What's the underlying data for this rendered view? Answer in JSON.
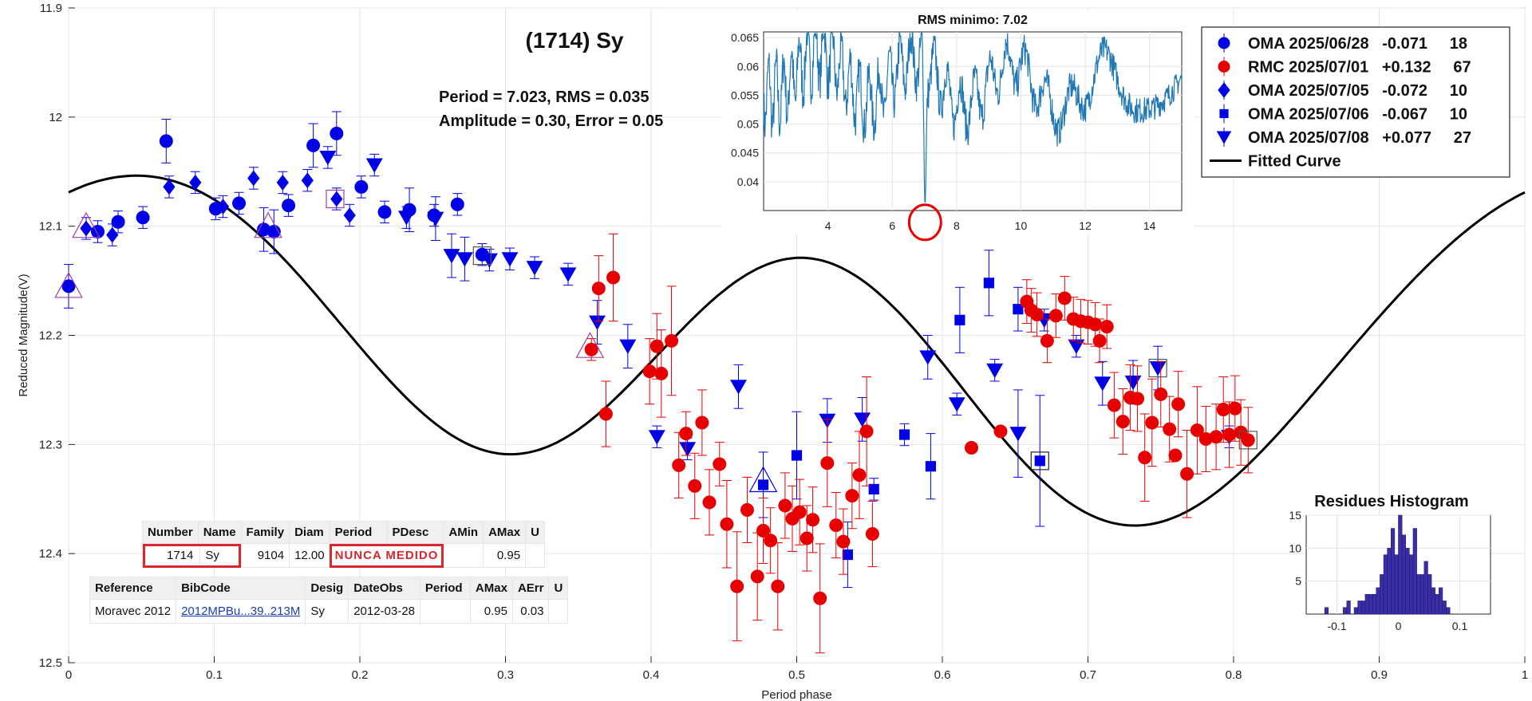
{
  "chart_data": [
    {
      "type": "scatter",
      "title": "(1714) Sy",
      "annotation_lines": [
        "Period =  7.023, RMS = 0.035",
        "Amplitude = 0.30, Error =  0.05"
      ],
      "xlabel": "Period phase",
      "ylabel": "Reduced Magnitude(V)",
      "xlim": [
        0,
        1
      ],
      "ylim": [
        11.9,
        12.5
      ],
      "y_reversed": true,
      "x_ticks": [
        "0",
        "0.1",
        "0.2",
        "0.3",
        "0.4",
        "0.5",
        "0.6",
        "0.7",
        "0.8",
        "0.9",
        "1"
      ],
      "y_ticks": [
        "11.9",
        "12",
        "12.1",
        "12.2",
        "12.3",
        "12.4",
        "12.5"
      ],
      "grid": true,
      "legend_position": "top-right",
      "legend": [
        {
          "label": "OMA 2025/06/28   -0.071     18",
          "marker": "circle",
          "color": "#0000e6"
        },
        {
          "label": "RMC 2025/07/01   +0.132     67",
          "marker": "circle",
          "color": "#e60000"
        },
        {
          "label": "OMA 2025/07/05   -0.072     10",
          "marker": "diamond",
          "color": "#0000e6"
        },
        {
          "label": "OMA 2025/07/06   -0.067     10",
          "marker": "square",
          "color": "#0000e6"
        },
        {
          "label": "OMA 2025/07/08   +0.077     27",
          "marker": "triangle-down",
          "color": "#0000e6"
        },
        {
          "label": "Fitted Curve",
          "marker": "line",
          "color": "#000000"
        }
      ],
      "series": [
        {
          "name": "OMA 2025/06/28",
          "marker": "circle",
          "color": "#0000e6",
          "points": [
            [
              0.0,
              12.155
            ],
            [
              0.02,
              12.105
            ],
            [
              0.034,
              12.096
            ],
            [
              0.051,
              12.092
            ],
            [
              0.067,
              12.022
            ],
            [
              0.101,
              12.084
            ],
            [
              0.117,
              12.079
            ],
            [
              0.134,
              12.103
            ],
            [
              0.141,
              12.105
            ],
            [
              0.151,
              12.081
            ],
            [
              0.168,
              12.026
            ],
            [
              0.184,
              12.015
            ],
            [
              0.201,
              12.064
            ],
            [
              0.217,
              12.087
            ],
            [
              0.234,
              12.085
            ],
            [
              0.251,
              12.09
            ],
            [
              0.267,
              12.08
            ],
            [
              0.284,
              12.126
            ]
          ],
          "err": [
            0.02,
            0.01,
            0.01,
            0.01,
            0.02,
            0.01,
            0.01,
            0.02,
            0.02,
            0.01,
            0.02,
            0.02,
            0.01,
            0.01,
            0.02,
            0.01,
            0.01,
            0.01
          ]
        },
        {
          "name": "OMA 2025/07/05",
          "marker": "diamond",
          "color": "#0000e6",
          "points": [
            [
              0.012,
              12.102
            ],
            [
              0.03,
              12.108
            ],
            [
              0.069,
              12.064
            ],
            [
              0.087,
              12.06
            ],
            [
              0.106,
              12.082
            ],
            [
              0.127,
              12.056
            ],
            [
              0.147,
              12.06
            ],
            [
              0.164,
              12.058
            ],
            [
              0.184,
              12.075
            ],
            [
              0.193,
              12.09
            ]
          ],
          "err": [
            0.01,
            0.01,
            0.01,
            0.01,
            0.01,
            0.01,
            0.01,
            0.01,
            0.01,
            0.01
          ]
        },
        {
          "name": "OMA 2025/07/06",
          "marker": "square",
          "color": "#0000e6",
          "points": [
            [
              0.477,
              12.337
            ],
            [
              0.5,
              12.31
            ],
            [
              0.535,
              12.401
            ],
            [
              0.553,
              12.341
            ],
            [
              0.574,
              12.291
            ],
            [
              0.592,
              12.32
            ],
            [
              0.612,
              12.186
            ],
            [
              0.632,
              12.152
            ],
            [
              0.652,
              12.176
            ],
            [
              0.667,
              12.315
            ]
          ],
          "err": [
            0.03,
            0.04,
            0.03,
            0.01,
            0.01,
            0.03,
            0.03,
            0.03,
            0.02,
            0.06
          ]
        },
        {
          "name": "OMA 2025/07/08",
          "marker": "triangle-down",
          "color": "#0000e6",
          "points": [
            [
              0.178,
              12.037
            ],
            [
              0.21,
              12.044
            ],
            [
              0.232,
              12.092
            ],
            [
              0.252,
              12.093
            ],
            [
              0.263,
              12.127
            ],
            [
              0.272,
              12.13
            ],
            [
              0.289,
              12.131
            ],
            [
              0.303,
              12.13
            ],
            [
              0.32,
              12.138
            ],
            [
              0.343,
              12.144
            ],
            [
              0.363,
              12.188
            ],
            [
              0.384,
              12.21
            ],
            [
              0.404,
              12.293
            ],
            [
              0.425,
              12.304
            ],
            [
              0.46,
              12.247
            ],
            [
              0.521,
              12.278
            ],
            [
              0.545,
              12.277
            ],
            [
              0.59,
              12.22
            ],
            [
              0.61,
              12.263
            ],
            [
              0.636,
              12.232
            ],
            [
              0.652,
              12.29
            ],
            [
              0.67,
              12.186
            ],
            [
              0.692,
              12.21
            ],
            [
              0.71,
              12.244
            ],
            [
              0.731,
              12.243
            ],
            [
              0.748,
              12.23
            ],
            [
              0.797,
              12.293
            ]
          ],
          "err": [
            0.01,
            0.01,
            0.01,
            0.02,
            0.02,
            0.02,
            0.01,
            0.01,
            0.01,
            0.01,
            0.02,
            0.02,
            0.01,
            0.01,
            0.02,
            0.02,
            0.02,
            0.02,
            0.01,
            0.01,
            0.04,
            0.01,
            0.01,
            0.02,
            0.02,
            0.02,
            0.01
          ]
        },
        {
          "name": "RMC 2025/07/01",
          "marker": "circle",
          "color": "#e60000",
          "points": [
            [
              0.359,
              12.213
            ],
            [
              0.364,
              12.157
            ],
            [
              0.369,
              12.272
            ],
            [
              0.374,
              12.147
            ],
            [
              0.399,
              12.233
            ],
            [
              0.404,
              12.21
            ],
            [
              0.407,
              12.235
            ],
            [
              0.414,
              12.205
            ],
            [
              0.419,
              12.319
            ],
            [
              0.424,
              12.29
            ],
            [
              0.43,
              12.338
            ],
            [
              0.435,
              12.28
            ],
            [
              0.44,
              12.353
            ],
            [
              0.447,
              12.318
            ],
            [
              0.452,
              12.373
            ],
            [
              0.459,
              12.43
            ],
            [
              0.466,
              12.36
            ],
            [
              0.473,
              12.421
            ],
            [
              0.477,
              12.379
            ],
            [
              0.482,
              12.388
            ],
            [
              0.487,
              12.43
            ],
            [
              0.492,
              12.356
            ],
            [
              0.497,
              12.368
            ],
            [
              0.502,
              12.362
            ],
            [
              0.507,
              12.386
            ],
            [
              0.511,
              12.369
            ],
            [
              0.516,
              12.441
            ],
            [
              0.521,
              12.317
            ],
            [
              0.527,
              12.374
            ],
            [
              0.532,
              12.389
            ],
            [
              0.538,
              12.347
            ],
            [
              0.543,
              12.328
            ],
            [
              0.548,
              12.288
            ],
            [
              0.552,
              12.382
            ],
            [
              0.658,
              12.169
            ],
            [
              0.661,
              12.177
            ],
            [
              0.665,
              12.181
            ],
            [
              0.672,
              12.205
            ],
            [
              0.678,
              12.182
            ],
            [
              0.684,
              12.166
            ],
            [
              0.69,
              12.185
            ],
            [
              0.695,
              12.187
            ],
            [
              0.7,
              12.188
            ],
            [
              0.705,
              12.19
            ],
            [
              0.708,
              12.205
            ],
            [
              0.713,
              12.192
            ],
            [
              0.718,
              12.264
            ],
            [
              0.724,
              12.279
            ],
            [
              0.729,
              12.257
            ],
            [
              0.734,
              12.258
            ],
            [
              0.739,
              12.312
            ],
            [
              0.744,
              12.28
            ],
            [
              0.75,
              12.254
            ],
            [
              0.756,
              12.286
            ],
            [
              0.762,
              12.263
            ],
            [
              0.768,
              12.327
            ],
            [
              0.775,
              12.287
            ],
            [
              0.781,
              12.295
            ],
            [
              0.788,
              12.293
            ],
            [
              0.793,
              12.268
            ],
            [
              0.797,
              12.291
            ],
            [
              0.801,
              12.267
            ],
            [
              0.805,
              12.289
            ],
            [
              0.81,
              12.296
            ],
            [
              0.62,
              12.303
            ],
            [
              0.64,
              12.288
            ],
            [
              0.76,
              12.31
            ]
          ],
          "err": [
            0.01,
            0.03,
            0.03,
            0.04,
            0.03,
            0.03,
            0.04,
            0.05,
            0.03,
            0.02,
            0.03,
            0.03,
            0.03,
            0.02,
            0.04,
            0.05,
            0.03,
            0.04,
            0.03,
            0.03,
            0.04,
            0.03,
            0.03,
            0.03,
            0.03,
            0.03,
            0.05,
            0.04,
            0.03,
            0.03,
            0.03,
            0.04,
            0.05,
            0.03,
            0.02,
            0.02,
            0.02,
            0.02,
            0.02,
            0.02,
            0.02,
            0.02,
            0.02,
            0.02,
            0.02,
            0.02,
            0.03,
            0.03,
            0.03,
            0.03,
            0.04,
            0.04,
            0.03,
            0.03,
            0.03,
            0.04,
            0.04,
            0.03,
            0.03,
            0.03,
            0.03,
            0.03,
            0.03,
            0.03,
            0.0,
            0.0,
            0.0
          ]
        }
      ],
      "fitted_curve": {
        "mean": 12.212,
        "a1": -0.051,
        "b1": -0.046,
        "a2": -0.113,
        "b2": -0.028,
        "a3": 0.021,
        "b3": 0.0
      },
      "open_markers": [
        {
          "x": 0.0,
          "y": 12.155,
          "shape": "triangle-up",
          "color": "#a040a0"
        },
        {
          "x": 0.012,
          "y": 12.1,
          "shape": "triangle-up",
          "color": "#a040a0"
        },
        {
          "x": 0.137,
          "y": 12.1,
          "shape": "triangle-up",
          "color": "#a040a0"
        },
        {
          "x": 0.183,
          "y": 12.075,
          "shape": "square",
          "color": "#a040a0"
        },
        {
          "x": 0.284,
          "y": 12.127,
          "shape": "square",
          "color": "#555555"
        },
        {
          "x": 0.358,
          "y": 12.21,
          "shape": "triangle-up",
          "color": "#a040a0"
        },
        {
          "x": 0.477,
          "y": 12.333,
          "shape": "triangle-up",
          "color": "#0000e6"
        },
        {
          "x": 0.667,
          "y": 12.315,
          "shape": "square",
          "color": "#222222"
        },
        {
          "x": 0.748,
          "y": 12.23,
          "shape": "square",
          "color": "#555555"
        },
        {
          "x": 0.81,
          "y": 12.296,
          "shape": "square",
          "color": "#555555"
        }
      ]
    },
    {
      "type": "line",
      "title": "RMS minimo: 7.02",
      "xlim": [
        2,
        15
      ],
      "ylim": [
        0.035,
        0.066
      ],
      "x_ticks": [
        "4",
        "6",
        "8",
        "10",
        "12",
        "14"
      ],
      "y_ticks": [
        "0.04",
        "0.045",
        "0.05",
        "0.055",
        "0.06",
        "0.065"
      ],
      "grid": true,
      "color": "#1f77b4",
      "minimum": {
        "x": 7.02,
        "y": 0.036
      },
      "highlight_color": "#e60000"
    },
    {
      "type": "bar",
      "title": "Residues Histogram",
      "xlim": [
        -0.15,
        0.15
      ],
      "ylim": [
        0,
        15
      ],
      "x_ticks": [
        "-0.1",
        "0",
        "0.1"
      ],
      "y_ticks": [
        "5",
        "10",
        "15"
      ],
      "bin_width": 0.006,
      "bin_starts": [
        -0.12,
        -0.114,
        -0.108,
        -0.102,
        -0.096,
        -0.09,
        -0.084,
        -0.078,
        -0.072,
        -0.066,
        -0.06,
        -0.054,
        -0.048,
        -0.042,
        -0.036,
        -0.03,
        -0.024,
        -0.018,
        -0.012,
        -0.006,
        0.0,
        0.006,
        0.012,
        0.018,
        0.024,
        0.03,
        0.036,
        0.042,
        0.048,
        0.054,
        0.06,
        0.066,
        0.072,
        0.078
      ],
      "values": [
        1,
        0,
        0,
        0,
        0,
        1,
        2,
        0,
        1,
        2,
        2,
        3,
        3,
        3,
        4,
        6,
        9,
        10,
        13,
        9,
        15,
        12,
        10,
        9,
        13,
        6,
        6,
        8,
        6,
        4,
        3,
        4,
        2,
        1
      ],
      "color": "#3a2ea8"
    }
  ],
  "table1": {
    "headers": [
      "Number",
      "Name",
      "Family",
      "Diam",
      "Period",
      "PDesc",
      "AMin",
      "AMax",
      "U"
    ],
    "number": "1714",
    "name": "Sy",
    "family": "9104",
    "diam": "12.00",
    "nunca": "NUNCA MEDIDO",
    "amin": "",
    "amax": "0.95",
    "u": ""
  },
  "table2": {
    "headers": [
      "Reference",
      "BibCode",
      "Desig",
      "DateObs",
      "Period",
      "AMax",
      "AErr",
      "U"
    ],
    "reference": "Moravec 2012",
    "bibcode": "2012MPBu...39..213M",
    "desig": "Sy",
    "dateobs": "2012-03-28",
    "period": "",
    "amax": "0.95",
    "aerr": "0.03",
    "u": ""
  }
}
